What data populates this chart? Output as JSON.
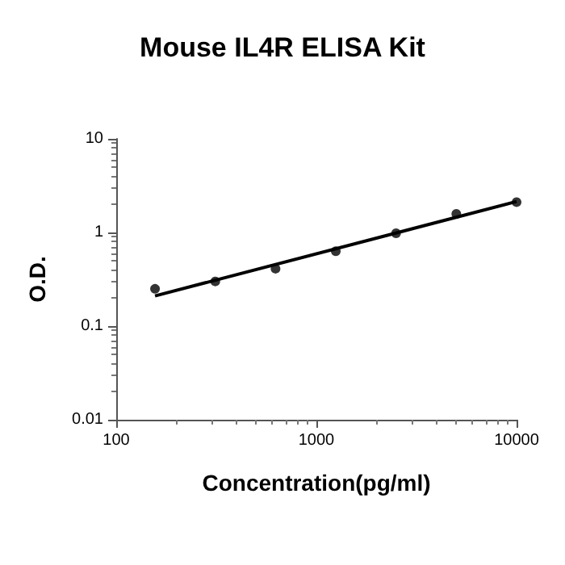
{
  "chart_data": {
    "type": "scatter",
    "title": "Mouse IL4R ELISA Kit",
    "xlabel": "Concentration(pg/ml)",
    "ylabel": "O.D.",
    "log": "xy",
    "xlim": [
      100,
      10000
    ],
    "xticks": [
      100,
      1000,
      10000
    ],
    "ylim": [
      0.01,
      10
    ],
    "yticks": [
      0.01,
      0.1,
      1,
      10
    ],
    "grid": false,
    "series": [
      {
        "marker": "circle",
        "color": "#000000",
        "x": [
          156.25,
          312.5,
          625,
          1250,
          2500,
          5000,
          10000
        ],
        "values": [
          0.25,
          0.3,
          0.41,
          0.63,
          0.98,
          1.58,
          2.11
        ]
      },
      {
        "type": "line",
        "marker": "none",
        "color": "#000000",
        "x": [
          156.25,
          10000
        ],
        "values": [
          0.21,
          2.14
        ]
      }
    ]
  }
}
